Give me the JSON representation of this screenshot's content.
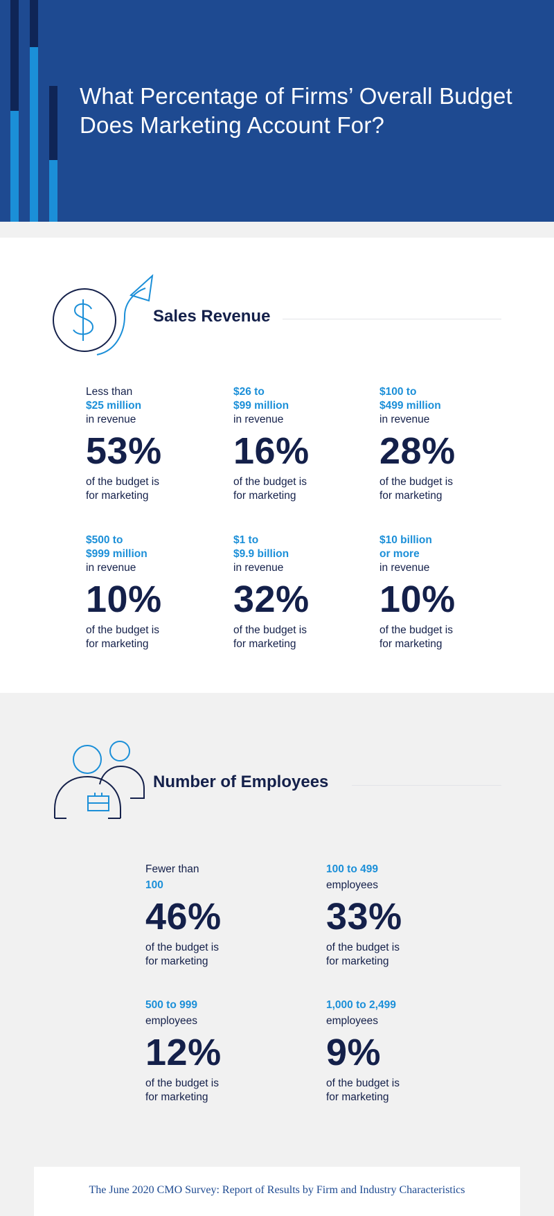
{
  "header": {
    "title": "What Percentage of Firms’ Overall Budget Does Marketing Account For?"
  },
  "sales": {
    "title": "Sales Revenue",
    "icon": "dollar-growth-icon",
    "items": [
      {
        "line1": "Less than",
        "line2": "$25 million",
        "line3": "in revenue",
        "percent": "53%",
        "desc1": "of the budget is",
        "desc2": "for marketing"
      },
      {
        "line1": "$26 to",
        "line2": "$99 million",
        "line3": "in revenue",
        "percent": "16%",
        "desc1": "of the budget is",
        "desc2": "for marketing"
      },
      {
        "line1": "$100 to",
        "line2": "$499 million",
        "line3": "in revenue",
        "percent": "28%",
        "desc1": "of the budget is",
        "desc2": "for marketing"
      },
      {
        "line1": "$500 to",
        "line2": "$999 million",
        "line3": "in revenue",
        "percent": "10%",
        "desc1": "of the budget is",
        "desc2": "for marketing"
      },
      {
        "line1": "$1 to",
        "line2": "$9.9 billion",
        "line3": "in revenue",
        "percent": "32%",
        "desc1": "of the budget is",
        "desc2": "for marketing"
      },
      {
        "line1": "$10 billion",
        "line2": "or more",
        "line3": "in revenue",
        "percent": "10%",
        "desc1": "of the budget is",
        "desc2": "for marketing"
      }
    ]
  },
  "employees": {
    "title": "Number of Employees",
    "icon": "people-briefcase-icon",
    "items": [
      {
        "line1": "Fewer than",
        "line2": "100",
        "percent": "46%",
        "desc1": "of the budget is",
        "desc2": "for marketing"
      },
      {
        "line1": "100 to 499",
        "line2": "employees",
        "percent": "33%",
        "desc1": "of the budget is",
        "desc2": "for marketing"
      },
      {
        "line1": "500 to 999",
        "line2": "employees",
        "percent": "12%",
        "desc1": "of the budget is",
        "desc2": "for marketing"
      },
      {
        "line1": "1,000 to 2,499",
        "line2": "employees",
        "percent": "9%",
        "desc1": "of the budget is",
        "desc2": "for marketing"
      }
    ]
  },
  "footer": {
    "text": "The June 2020 CMO Survey: Report of Results by Firm and Industry Characteristics"
  },
  "colors": {
    "header_bg": "#1e4a91",
    "navy": "#14204a",
    "accent_blue": "#1b8fd8",
    "bar_dark": "#0f2556"
  }
}
